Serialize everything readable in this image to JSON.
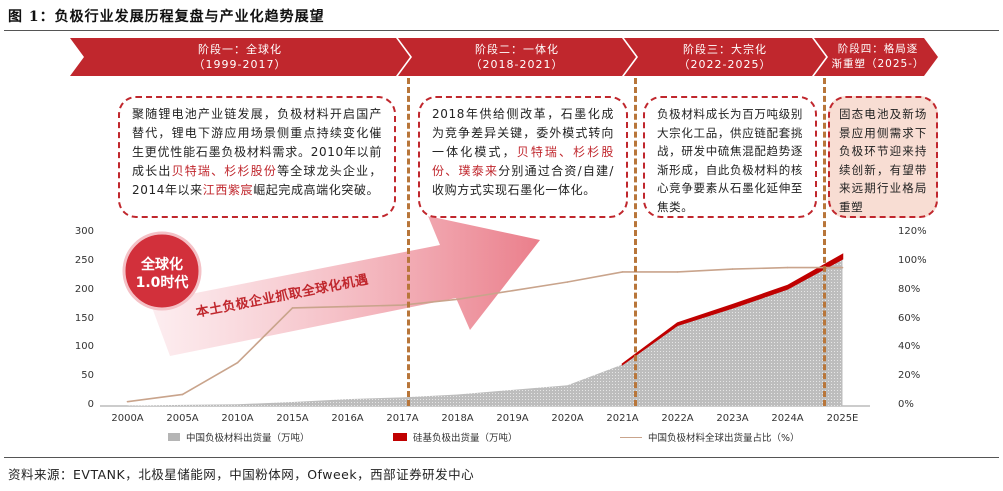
{
  "figure": {
    "title_lead": "图 1：",
    "title": "负极行业发展历程复盘与产业化趋势展望",
    "source": "资料来源：EVTANK，北极星储能网，中国粉体网，Ofweek，西部证券研发中心"
  },
  "stages": [
    {
      "name": "阶段一：全球化",
      "period": "（1999-2017）"
    },
    {
      "name": "阶段二：一体化",
      "period": "（2018-2021）"
    },
    {
      "name": "阶段三：大宗化",
      "period": "（2022-2025）"
    },
    {
      "name": "阶段四：格局逐",
      "period": "渐重塑（2025-）"
    }
  ],
  "notes": {
    "s1": {
      "p1": "聚随锂电池产业链发展，负极材料开启国产替代，锂电下游应用场景侧重点持续变化催生更优性能石墨负极材料需求。2010年以前成长出",
      "h1": "贝特瑞、杉杉股份",
      "p2": "等全球龙头企业，2014年以来",
      "h2": "江西紫宸",
      "p3": "崛起完成高端化突破。"
    },
    "s2": {
      "p1": "2018年供给侧改革，石墨化成为竞争差异关键，委外模式转向一体化模式，",
      "h1": "贝特瑞、杉杉股份、璞泰来",
      "p2": "分别通过合资/自建/收购方式实现石墨化一体化。"
    },
    "s3": {
      "p1": "负极材料成长为百万吨级别大宗化工品，供应链配套挑战，研发中硫焦混配趋势逐渐形成，自此负极材料的核心竞争要素从石墨化延伸至焦类。"
    },
    "s4": {
      "p1": "固态电池及新场景应用侧需求下负极环节迎来持续创新，有望带来远期行业格局重塑"
    }
  },
  "badge": {
    "line1": "全球化",
    "line2": "1.0时代"
  },
  "arrow_text": "本土负极企业抓取全球化机遇",
  "colors": {
    "stage_red": "#c0272d",
    "area_gray": "#b5b5b5",
    "export_red": "#c00000",
    "share_line": "#c9a48c",
    "divider": "#b8763a"
  },
  "chart_data": {
    "type": "area",
    "categories": [
      "2000A",
      "2005A",
      "2010A",
      "2015A",
      "2016A",
      "2017A",
      "2018A",
      "2019A",
      "2020A",
      "2021A",
      "2022A",
      "2023A",
      "2024A",
      "2025E"
    ],
    "ylim_left": [
      0,
      300
    ],
    "ylim_right": [
      0,
      120
    ],
    "yticks_left": [
      "0",
      "50",
      "100",
      "150",
      "200",
      "250",
      "300"
    ],
    "yticks_right": [
      "0%",
      "20%",
      "40%",
      "60%",
      "80%",
      "100%",
      "120%"
    ],
    "series": [
      {
        "name": "中国负极材料出货量（万吨）",
        "type": "area",
        "axis": "left",
        "values": [
          0.5,
          2,
          3,
          7,
          12,
          15,
          20,
          28,
          36,
          72,
          140,
          170,
          203,
          255
        ]
      },
      {
        "name": "硅基负极出货量（万吨）",
        "type": "area",
        "axis": "left",
        "values": [
          0,
          0,
          0,
          0,
          0,
          0,
          0,
          0,
          0,
          0.5,
          2,
          3,
          3,
          4
        ]
      },
      {
        "name": "中国负极材料全球出货量占比（%）",
        "type": "line",
        "axis": "right",
        "values": [
          3,
          8,
          30,
          68,
          69,
          70,
          74,
          80,
          86,
          93,
          93,
          95,
          96,
          96
        ]
      }
    ]
  }
}
